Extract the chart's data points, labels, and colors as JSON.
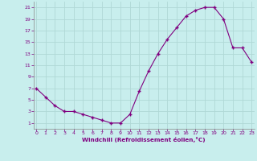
{
  "x": [
    0,
    1,
    2,
    3,
    4,
    5,
    6,
    7,
    8,
    9,
    10,
    11,
    12,
    13,
    14,
    15,
    16,
    17,
    18,
    19,
    20,
    21,
    22,
    23
  ],
  "y": [
    7,
    5.5,
    4,
    3,
    3,
    2.5,
    2,
    1.5,
    1,
    1,
    2.5,
    6.5,
    10,
    13,
    15.5,
    17.5,
    19.5,
    20.5,
    21,
    21,
    19,
    14,
    14,
    11.5
  ],
  "line_color": "#800080",
  "marker_color": "#800080",
  "bg_color": "#c8eeed",
  "grid_color": "#b0d8d6",
  "xlabel": "Windchill (Refroidissement éolien,°C)",
  "xlabel_color": "#800080",
  "tick_color": "#800080",
  "spine_color": "#888888",
  "ylim": [
    0,
    22
  ],
  "xlim": [
    -0.3,
    23.3
  ],
  "yticks": [
    1,
    3,
    5,
    7,
    9,
    11,
    13,
    15,
    17,
    19,
    21
  ],
  "xticks": [
    0,
    1,
    2,
    3,
    4,
    5,
    6,
    7,
    8,
    9,
    10,
    11,
    12,
    13,
    14,
    15,
    16,
    17,
    18,
    19,
    20,
    21,
    22,
    23
  ]
}
